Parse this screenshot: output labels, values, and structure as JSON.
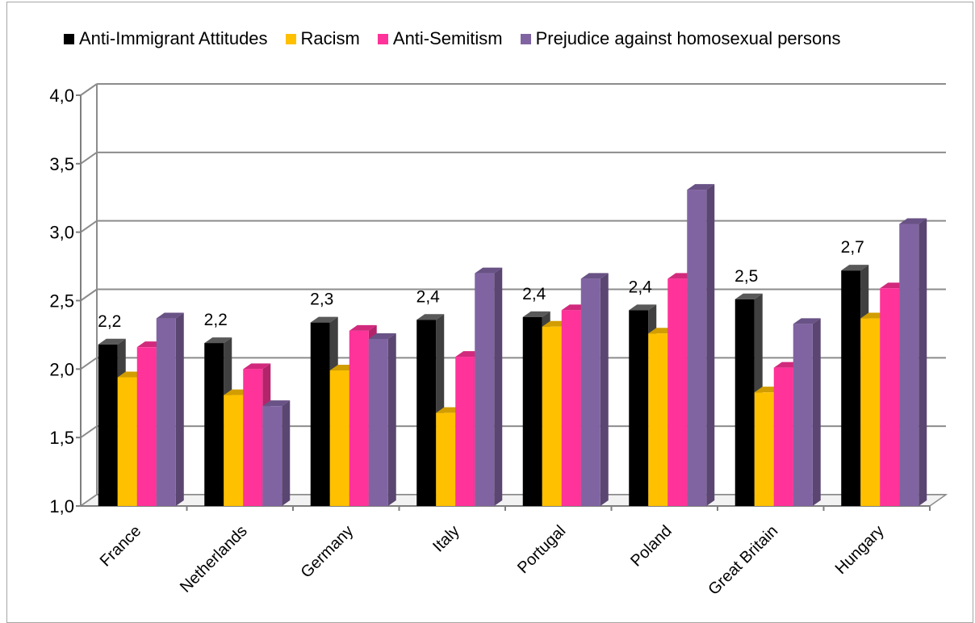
{
  "chart_data": {
    "type": "bar",
    "categories": [
      "France",
      "Netherlands",
      "Germany",
      "Italy",
      "Portugal",
      "Poland",
      "Great Britain",
      "Hungary"
    ],
    "series": [
      {
        "name": "Anti-Immigrant Attitudes",
        "color": "#000000",
        "values": [
          2.18,
          2.19,
          2.34,
          2.36,
          2.38,
          2.43,
          2.51,
          2.72
        ]
      },
      {
        "name": "Racism",
        "color": "#ffc000",
        "values": [
          1.94,
          1.81,
          1.99,
          1.68,
          2.31,
          2.26,
          1.83,
          2.37
        ]
      },
      {
        "name": "Anti-Semitism",
        "color": "#ff3399",
        "values": [
          2.16,
          2.0,
          2.28,
          2.09,
          2.43,
          2.66,
          2.01,
          2.59
        ]
      },
      {
        "name": "Prejudice against homosexual persons",
        "color": "#8064a2",
        "values": [
          2.37,
          1.73,
          2.22,
          2.7,
          2.66,
          3.31,
          2.33,
          3.06
        ]
      }
    ],
    "data_labels": [
      "2,2",
      "2,2",
      "2,3",
      "2,4",
      "2,4",
      "2,4",
      "2,5",
      "2,7"
    ],
    "y_ticks": [
      "1,0",
      "1,5",
      "2,0",
      "2,5",
      "3,0",
      "3,5",
      "4,0"
    ],
    "ylim": [
      1.0,
      4.0
    ],
    "grid": true,
    "legend_position": "top",
    "three_d": true
  }
}
